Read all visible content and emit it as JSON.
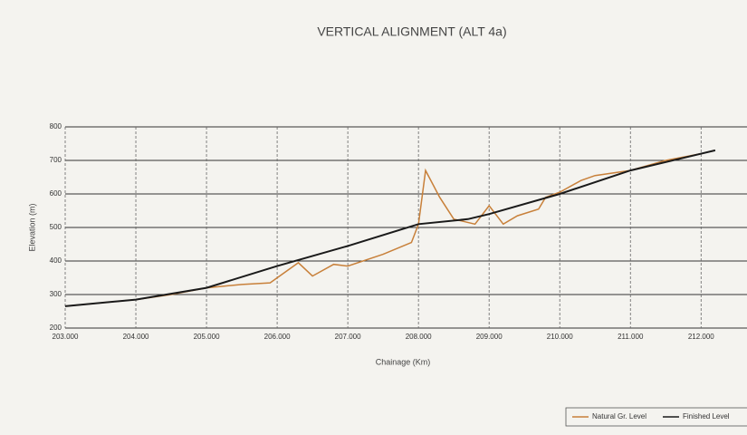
{
  "chart_data": {
    "type": "line",
    "title": "VERTICAL ALIGNMENT (ALT 4a)",
    "xlabel": "Chainage (Km)",
    "ylabel": "Elevation (m)",
    "series": [
      {
        "name": "Natural Gr. Level",
        "color": "#c8803a",
        "x": [
          203,
          204,
          204.5,
          205,
          205.5,
          205.9,
          206.3,
          206.5,
          206.8,
          207,
          207.5,
          207.9,
          208,
          208.1,
          208.3,
          208.5,
          208.8,
          209,
          209.2,
          209.4,
          209.7,
          209.8,
          210,
          210.3,
          210.5,
          211,
          211.5,
          212
        ],
        "values": [
          265,
          285,
          300,
          320,
          330,
          335,
          395,
          355,
          390,
          385,
          420,
          455,
          510,
          670,
          590,
          525,
          510,
          565,
          510,
          535,
          555,
          590,
          605,
          640,
          655,
          670,
          700,
          720
        ]
      },
      {
        "name": "Finished Level",
        "color": "#1a1a1a",
        "x": [
          203,
          204,
          205,
          206,
          207,
          208,
          208.7,
          209,
          210,
          211,
          212.2
        ],
        "values": [
          265,
          285,
          320,
          385,
          445,
          510,
          525,
          540,
          600,
          670,
          730
        ]
      }
    ],
    "xlim": [
      203,
      212.65
    ],
    "xticks": [
      {
        "value": 203,
        "label": "203.000"
      },
      {
        "value": 204,
        "label": "204.000"
      },
      {
        "value": 205,
        "label": "205.000"
      },
      {
        "value": 206,
        "label": "206.000"
      },
      {
        "value": 207,
        "label": "207.000"
      },
      {
        "value": 208,
        "label": "208.000"
      },
      {
        "value": 209,
        "label": "209.000"
      },
      {
        "value": 210,
        "label": "210.000"
      },
      {
        "value": 211,
        "label": "211.000"
      },
      {
        "value": 212,
        "label": "212.000"
      }
    ],
    "ylim": [
      200,
      800
    ],
    "yticks": [
      200,
      300,
      400,
      500,
      600,
      700,
      800
    ],
    "grid": true,
    "legend": "bottom-right"
  }
}
